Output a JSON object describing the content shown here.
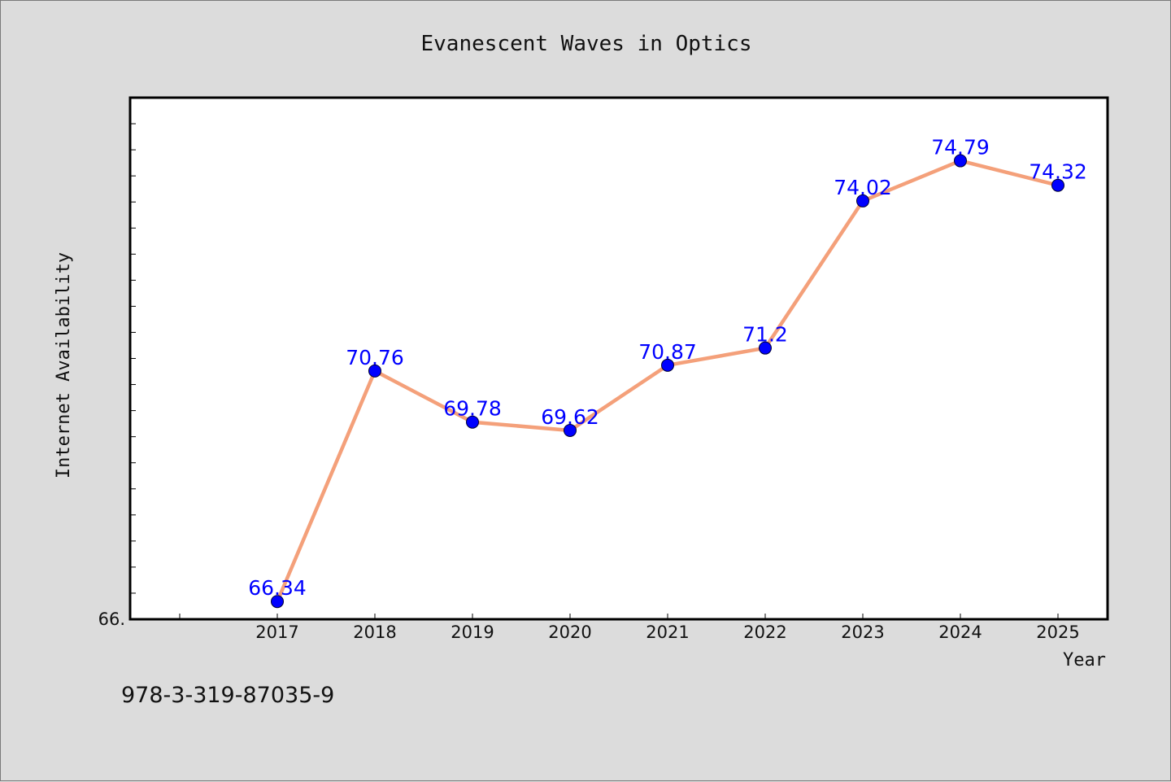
{
  "chart_data": {
    "type": "line",
    "title": "Evanescent Waves in Optics",
    "xlabel": "Year",
    "ylabel": "Internet Availability",
    "categories": [
      "2017",
      "2018",
      "2019",
      "2020",
      "2021",
      "2022",
      "2023",
      "2024",
      "2025"
    ],
    "series": [
      {
        "values": [
          66.34,
          70.76,
          69.78,
          69.62,
          70.87,
          71.2,
          74.02,
          74.79,
          74.32
        ],
        "data_labels": [
          "66.34",
          "70.76",
          "69.78",
          "69.62",
          "70.87",
          "71.2",
          "74.02",
          "74.79",
          "74.32"
        ],
        "line_color": "#f4a07a",
        "marker_color": "#0000ff"
      }
    ],
    "ylim": [
      66.0,
      76.0
    ],
    "ytick_labels": [
      "66."
    ],
    "grid": false,
    "legend": "none"
  },
  "footer": {
    "isbn": "978-3-319-87035-9"
  },
  "colors": {
    "background": "#dcdcdc",
    "plot_background": "#ffffff"
  }
}
